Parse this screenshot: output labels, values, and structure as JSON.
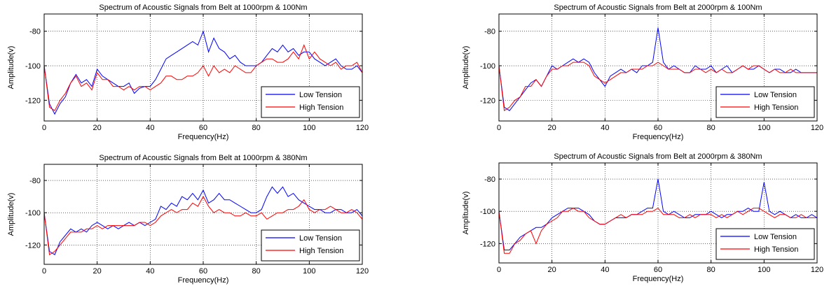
{
  "colors": {
    "low": "#0000ff",
    "high": "#ff0000",
    "grid": "#000000"
  },
  "chart_data": [
    {
      "type": "line",
      "title": "Spectrum of Acoustic Signals from Belt at 1000rpm & 100Nm",
      "xlabel": "Frequency(Hz)",
      "ylabel": "Amplitude(v)",
      "xlim": [
        0,
        120
      ],
      "ylim": [
        -132,
        -70
      ],
      "xticks": [
        0,
        20,
        40,
        60,
        80,
        100,
        120
      ],
      "yticks": [
        -120,
        -100,
        -80
      ],
      "grid": true,
      "legend_position": "bottom-right",
      "series": [
        {
          "name": "Low Tension",
          "x": [
            0,
            2,
            4,
            6,
            8,
            10,
            12,
            14,
            16,
            18,
            20,
            22,
            24,
            26,
            28,
            30,
            32,
            34,
            36,
            38,
            40,
            42,
            44,
            46,
            48,
            50,
            52,
            54,
            56,
            58,
            60,
            62,
            64,
            66,
            68,
            70,
            72,
            74,
            76,
            78,
            80,
            82,
            84,
            86,
            88,
            90,
            92,
            94,
            96,
            98,
            100,
            102,
            104,
            106,
            108,
            110,
            112,
            114,
            116,
            118,
            120
          ],
          "values": [
            -100,
            -122,
            -128,
            -122,
            -118,
            -110,
            -105,
            -110,
            -108,
            -112,
            -102,
            -106,
            -108,
            -110,
            -112,
            -112,
            -110,
            -116,
            -113,
            -112,
            -112,
            -108,
            -102,
            -96,
            -94,
            -92,
            -90,
            -88,
            -86,
            -88,
            -80,
            -92,
            -84,
            -90,
            -92,
            -96,
            -94,
            -98,
            -100,
            -100,
            -100,
            -98,
            -94,
            -90,
            -92,
            -88,
            -92,
            -90,
            -94,
            -92,
            -92,
            -96,
            -98,
            -100,
            -98,
            -96,
            -100,
            -102,
            -102,
            -100,
            -104
          ]
        },
        {
          "name": "High Tension",
          "x": [
            0,
            2,
            4,
            6,
            8,
            10,
            12,
            14,
            16,
            18,
            20,
            22,
            24,
            26,
            28,
            30,
            32,
            34,
            36,
            38,
            40,
            42,
            44,
            46,
            48,
            50,
            52,
            54,
            56,
            58,
            60,
            62,
            64,
            66,
            68,
            70,
            72,
            74,
            76,
            78,
            80,
            82,
            84,
            86,
            88,
            90,
            92,
            94,
            96,
            98,
            100,
            102,
            104,
            106,
            108,
            110,
            112,
            114,
            116,
            118,
            120
          ],
          "values": [
            -100,
            -124,
            -126,
            -120,
            -116,
            -110,
            -106,
            -112,
            -110,
            -114,
            -104,
            -108,
            -108,
            -112,
            -112,
            -114,
            -112,
            -114,
            -112,
            -112,
            -114,
            -112,
            -110,
            -106,
            -106,
            -108,
            -108,
            -106,
            -106,
            -104,
            -100,
            -106,
            -100,
            -104,
            -102,
            -104,
            -100,
            -102,
            -104,
            -104,
            -100,
            -98,
            -96,
            -96,
            -98,
            -98,
            -96,
            -92,
            -96,
            -88,
            -96,
            -92,
            -96,
            -98,
            -100,
            -98,
            -102,
            -100,
            -100,
            -98,
            -104
          ]
        }
      ]
    },
    {
      "type": "line",
      "title": "Spectrum of Acoustic Signals from Belt at 2000rpm & 100Nm",
      "xlabel": "Frequency(Hz)",
      "ylabel": "Amplitude(v)",
      "xlim": [
        0,
        120
      ],
      "ylim": [
        -132,
        -70
      ],
      "xticks": [
        0,
        20,
        40,
        60,
        80,
        100,
        120
      ],
      "yticks": [
        -120,
        -100,
        -80
      ],
      "grid": true,
      "legend_position": "bottom-right",
      "series": [
        {
          "name": "Low Tension",
          "x": [
            0,
            2,
            4,
            6,
            8,
            10,
            12,
            14,
            16,
            18,
            20,
            22,
            24,
            26,
            28,
            30,
            32,
            34,
            36,
            38,
            40,
            42,
            44,
            46,
            48,
            50,
            52,
            54,
            56,
            58,
            60,
            62,
            64,
            66,
            68,
            70,
            72,
            74,
            76,
            78,
            80,
            82,
            84,
            86,
            88,
            90,
            92,
            94,
            96,
            98,
            100,
            102,
            104,
            106,
            108,
            110,
            112,
            114,
            116,
            118,
            120
          ],
          "values": [
            -100,
            -124,
            -126,
            -122,
            -118,
            -114,
            -110,
            -108,
            -112,
            -106,
            -100,
            -102,
            -100,
            -98,
            -96,
            -98,
            -96,
            -98,
            -104,
            -108,
            -112,
            -106,
            -104,
            -102,
            -104,
            -102,
            -104,
            -100,
            -100,
            -98,
            -78,
            -98,
            -102,
            -100,
            -102,
            -104,
            -104,
            -100,
            -102,
            -102,
            -100,
            -104,
            -102,
            -100,
            -104,
            -102,
            -100,
            -102,
            -102,
            -100,
            -102,
            -104,
            -102,
            -102,
            -104,
            -104,
            -102,
            -104,
            -104,
            -104,
            -104
          ]
        },
        {
          "name": "High Tension",
          "x": [
            0,
            2,
            4,
            6,
            8,
            10,
            12,
            14,
            16,
            18,
            20,
            22,
            24,
            26,
            28,
            30,
            32,
            34,
            36,
            38,
            40,
            42,
            44,
            46,
            48,
            50,
            52,
            54,
            56,
            58,
            60,
            62,
            64,
            66,
            68,
            70,
            72,
            74,
            76,
            78,
            80,
            82,
            84,
            86,
            88,
            90,
            92,
            94,
            96,
            98,
            100,
            102,
            104,
            106,
            108,
            110,
            112,
            114,
            116,
            118,
            120
          ],
          "values": [
            -100,
            -126,
            -124,
            -120,
            -118,
            -112,
            -112,
            -108,
            -112,
            -106,
            -102,
            -102,
            -100,
            -100,
            -98,
            -98,
            -98,
            -100,
            -106,
            -108,
            -110,
            -108,
            -106,
            -104,
            -104,
            -102,
            -102,
            -102,
            -100,
            -100,
            -98,
            -100,
            -102,
            -102,
            -102,
            -104,
            -104,
            -102,
            -102,
            -104,
            -102,
            -104,
            -102,
            -104,
            -104,
            -102,
            -100,
            -102,
            -100,
            -100,
            -102,
            -104,
            -102,
            -104,
            -104,
            -102,
            -104,
            -104,
            -104,
            -104,
            -104
          ]
        }
      ]
    },
    {
      "type": "line",
      "title": "Spectrum of Acoustic Signals from Belt at 1000rpm & 380Nm",
      "xlabel": "Frequency(Hz)",
      "ylabel": "Amplitude(v)",
      "xlim": [
        0,
        120
      ],
      "ylim": [
        -132,
        -70
      ],
      "xticks": [
        0,
        20,
        40,
        60,
        80,
        100,
        120
      ],
      "yticks": [
        -120,
        -100,
        -80
      ],
      "grid": true,
      "legend_position": "bottom-right",
      "series": [
        {
          "name": "Low Tension",
          "x": [
            0,
            2,
            4,
            6,
            8,
            10,
            12,
            14,
            16,
            18,
            20,
            22,
            24,
            26,
            28,
            30,
            32,
            34,
            36,
            38,
            40,
            42,
            44,
            46,
            48,
            50,
            52,
            54,
            56,
            58,
            60,
            62,
            64,
            66,
            68,
            70,
            72,
            74,
            76,
            78,
            80,
            82,
            84,
            86,
            88,
            90,
            92,
            94,
            96,
            98,
            100,
            102,
            104,
            106,
            108,
            110,
            112,
            114,
            116,
            118,
            120
          ],
          "values": [
            -100,
            -124,
            -126,
            -118,
            -114,
            -110,
            -112,
            -110,
            -112,
            -108,
            -106,
            -108,
            -110,
            -108,
            -110,
            -108,
            -106,
            -108,
            -106,
            -108,
            -106,
            -104,
            -96,
            -98,
            -94,
            -96,
            -90,
            -92,
            -88,
            -92,
            -86,
            -94,
            -92,
            -88,
            -92,
            -92,
            -94,
            -96,
            -98,
            -100,
            -100,
            -98,
            -90,
            -84,
            -88,
            -84,
            -90,
            -88,
            -92,
            -94,
            -96,
            -98,
            -98,
            -100,
            -100,
            -98,
            -98,
            -100,
            -100,
            -98,
            -102
          ]
        },
        {
          "name": "High Tension",
          "x": [
            0,
            2,
            4,
            6,
            8,
            10,
            12,
            14,
            16,
            18,
            20,
            22,
            24,
            26,
            28,
            30,
            32,
            34,
            36,
            38,
            40,
            42,
            44,
            46,
            48,
            50,
            52,
            54,
            56,
            58,
            60,
            62,
            64,
            66,
            68,
            70,
            72,
            74,
            76,
            78,
            80,
            82,
            84,
            86,
            88,
            90,
            92,
            94,
            96,
            98,
            100,
            102,
            104,
            106,
            108,
            110,
            112,
            114,
            116,
            118,
            120
          ],
          "values": [
            -100,
            -126,
            -124,
            -120,
            -116,
            -112,
            -112,
            -112,
            -110,
            -110,
            -108,
            -110,
            -108,
            -108,
            -108,
            -108,
            -108,
            -108,
            -106,
            -106,
            -108,
            -106,
            -102,
            -100,
            -98,
            -100,
            -98,
            -98,
            -94,
            -96,
            -90,
            -96,
            -100,
            -98,
            -100,
            -100,
            -102,
            -102,
            -100,
            -102,
            -102,
            -100,
            -104,
            -102,
            -100,
            -100,
            -98,
            -98,
            -96,
            -92,
            -98,
            -100,
            -98,
            -98,
            -96,
            -98,
            -100,
            -100,
            -98,
            -100,
            -104
          ]
        }
      ]
    },
    {
      "type": "line",
      "title": "Spectrum of Acoustic Signals from Belt at 2000rpm & 380Nm",
      "xlabel": "Frequency(Hz)",
      "ylabel": "Amplitude(v)",
      "xlim": [
        0,
        120
      ],
      "ylim": [
        -132,
        -70
      ],
      "xticks": [
        0,
        20,
        40,
        60,
        80,
        100,
        120
      ],
      "yticks": [
        -120,
        -100,
        -80
      ],
      "grid": true,
      "legend_position": "bottom-right",
      "series": [
        {
          "name": "Low Tension",
          "x": [
            0,
            2,
            4,
            6,
            8,
            10,
            12,
            14,
            16,
            18,
            20,
            22,
            24,
            26,
            28,
            30,
            32,
            34,
            36,
            38,
            40,
            42,
            44,
            46,
            48,
            50,
            52,
            54,
            56,
            58,
            60,
            62,
            64,
            66,
            68,
            70,
            72,
            74,
            76,
            78,
            80,
            82,
            84,
            86,
            88,
            90,
            92,
            94,
            96,
            98,
            100,
            102,
            104,
            106,
            108,
            110,
            112,
            114,
            116,
            118,
            120
          ],
          "values": [
            -100,
            -124,
            -124,
            -120,
            -116,
            -114,
            -112,
            -110,
            -110,
            -108,
            -104,
            -102,
            -100,
            -98,
            -98,
            -98,
            -100,
            -102,
            -106,
            -108,
            -108,
            -106,
            -104,
            -104,
            -104,
            -102,
            -102,
            -100,
            -98,
            -98,
            -80,
            -100,
            -102,
            -100,
            -102,
            -104,
            -104,
            -102,
            -102,
            -102,
            -100,
            -102,
            -104,
            -102,
            -102,
            -100,
            -100,
            -98,
            -100,
            -100,
            -82,
            -100,
            -102,
            -100,
            -102,
            -104,
            -102,
            -104,
            -104,
            -102,
            -104
          ]
        },
        {
          "name": "High Tension",
          "x": [
            0,
            2,
            4,
            6,
            8,
            10,
            12,
            14,
            16,
            18,
            20,
            22,
            24,
            26,
            28,
            30,
            32,
            34,
            36,
            38,
            40,
            42,
            44,
            46,
            48,
            50,
            52,
            54,
            56,
            58,
            60,
            62,
            64,
            66,
            68,
            70,
            72,
            74,
            76,
            78,
            80,
            82,
            84,
            86,
            88,
            90,
            92,
            94,
            96,
            98,
            100,
            102,
            104,
            106,
            108,
            110,
            112,
            114,
            116,
            118,
            120
          ],
          "values": [
            -100,
            -126,
            -126,
            -120,
            -118,
            -114,
            -112,
            -120,
            -112,
            -108,
            -106,
            -104,
            -100,
            -100,
            -98,
            -100,
            -100,
            -104,
            -106,
            -108,
            -108,
            -106,
            -104,
            -102,
            -104,
            -102,
            -102,
            -102,
            -100,
            -100,
            -98,
            -102,
            -102,
            -102,
            -104,
            -104,
            -102,
            -104,
            -102,
            -102,
            -102,
            -104,
            -102,
            -104,
            -102,
            -100,
            -102,
            -100,
            -98,
            -98,
            -100,
            -102,
            -104,
            -102,
            -102,
            -104,
            -104,
            -102,
            -104,
            -104,
            -104
          ]
        }
      ]
    }
  ]
}
